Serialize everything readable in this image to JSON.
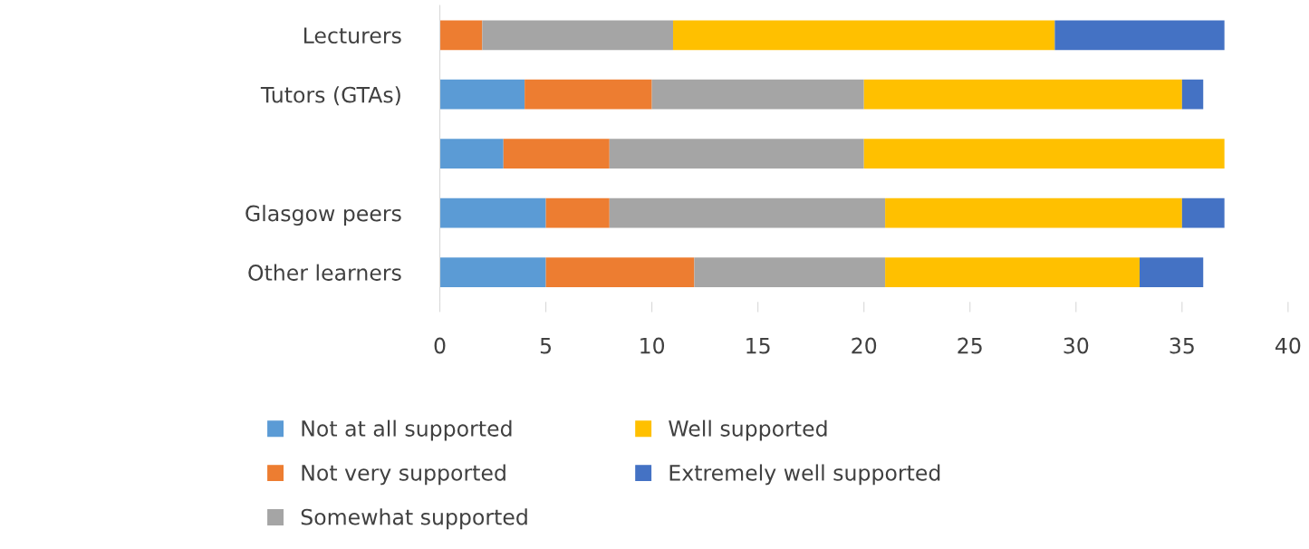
{
  "chart_data": {
    "type": "bar",
    "orientation": "horizontal",
    "stacked": true,
    "categories": [
      "Lecturers",
      "Tutors (GTAs)",
      null,
      "Glasgow peers",
      "Other learners"
    ],
    "series": [
      {
        "name": "Not at all supported",
        "color": "#5b9bd5",
        "values": [
          0,
          4,
          3,
          5,
          5
        ]
      },
      {
        "name": "Not very supported",
        "color": "#ed7d31",
        "values": [
          2,
          6,
          5,
          3,
          7
        ]
      },
      {
        "name": "Somewhat supported",
        "color": "#a5a5a5",
        "values": [
          9,
          10,
          12,
          13,
          9
        ]
      },
      {
        "name": "Well supported",
        "color": "#ffc000",
        "values": [
          18,
          15,
          17,
          14,
          12
        ]
      },
      {
        "name": "Extremely well supported",
        "color": "#4472c4",
        "values": [
          8,
          1,
          0,
          2,
          3
        ]
      }
    ],
    "xlim": [
      0,
      40
    ],
    "xticks": [
      0,
      5,
      10,
      15,
      20,
      25,
      30,
      35,
      40
    ],
    "grid": false,
    "legend": "bottom"
  }
}
